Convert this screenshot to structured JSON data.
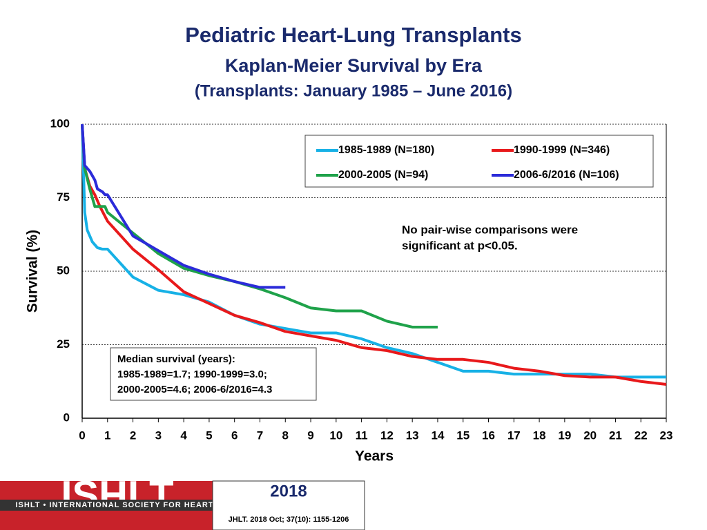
{
  "chart_data": {
    "type": "line",
    "title": "Pediatric Heart-Lung Transplants",
    "subtitle": [
      "Kaplan-Meier Survival by Era",
      "(Transplants: January 1985 – June 2016)"
    ],
    "x_label": "Years",
    "y_label": "Survival (%)",
    "xlim": [
      0,
      23
    ],
    "xticks": [
      0,
      1,
      2,
      3,
      4,
      5,
      6,
      7,
      8,
      9,
      10,
      11,
      12,
      13,
      14,
      15,
      16,
      17,
      18,
      19,
      20,
      21,
      22,
      23
    ],
    "ylim": [
      0,
      100
    ],
    "yticks": [
      0,
      25,
      50,
      75,
      100
    ],
    "grid": true,
    "series": [
      {
        "name": "1985-1989 (N=180)",
        "color": "#17b1e6",
        "x": [
          0,
          0.1,
          0.2,
          0.4,
          0.6,
          0.8,
          1,
          2,
          3,
          4,
          5,
          6,
          7,
          8,
          9,
          10,
          11,
          12,
          13,
          14,
          15,
          16,
          17,
          18,
          19,
          20,
          21,
          22,
          23
        ],
        "values": [
          100,
          70,
          64,
          60,
          58,
          57.5,
          57.5,
          48,
          43.5,
          42,
          39.5,
          35,
          32,
          30.5,
          29,
          29,
          27,
          24,
          22,
          19,
          16,
          16,
          15,
          15,
          15,
          15,
          14,
          14,
          14
        ]
      },
      {
        "name": "1990-1999 (N=346)",
        "color": "#e8191b",
        "x": [
          0,
          0.1,
          0.3,
          0.5,
          0.7,
          1,
          2,
          3,
          4,
          5,
          6,
          7,
          8,
          9,
          10,
          11,
          12,
          13,
          14,
          15,
          16,
          17,
          18,
          19,
          20,
          21,
          22,
          23
        ],
        "values": [
          100,
          85,
          79,
          76,
          72,
          67,
          57.5,
          50.5,
          43,
          39,
          35,
          32.5,
          29.5,
          28,
          26.5,
          24,
          23,
          21,
          20,
          20,
          19,
          17,
          16,
          14.5,
          14,
          14,
          12.5,
          11.5
        ]
      },
      {
        "name": "2000-2005 (N=94)",
        "color": "#1fa24a",
        "x": [
          0,
          0.1,
          0.3,
          0.5,
          0.9,
          1,
          2,
          3,
          4,
          5,
          6,
          7,
          8,
          9,
          10,
          11,
          12,
          13,
          14
        ],
        "values": [
          100,
          85,
          78,
          72,
          72,
          70,
          63,
          56,
          51,
          48.5,
          46.5,
          44,
          41,
          37.5,
          36.5,
          36.5,
          33,
          31,
          31
        ]
      },
      {
        "name": "2006-6/2016 (N=106)",
        "color": "#2b2bd9",
        "x": [
          0,
          0.1,
          0.3,
          0.5,
          0.6,
          0.8,
          0.9,
          1,
          2,
          3,
          4,
          5,
          6,
          7,
          8
        ],
        "values": [
          100,
          86,
          84,
          81,
          78,
          77,
          76,
          76,
          62,
          57,
          52,
          49,
          46.5,
          44.5,
          44.5
        ]
      }
    ],
    "annotation": [
      "No pair-wise comparisons were",
      "significant at p<0.05."
    ],
    "median_box": [
      "Median survival (years):",
      "1985-1989=1.7; 1990-1999=3.0;",
      "2000-2005=4.6; 2006-6/2016=4.3"
    ]
  },
  "footer": {
    "logo": "ISHLT",
    "society": "ISHLT • INTERNATIONAL SOCIETY FOR HEART AND LUNG TRANSPLANTATION",
    "year": "2018",
    "citation": "JHLT. 2018 Oct; 37(10): 1155-1206"
  }
}
